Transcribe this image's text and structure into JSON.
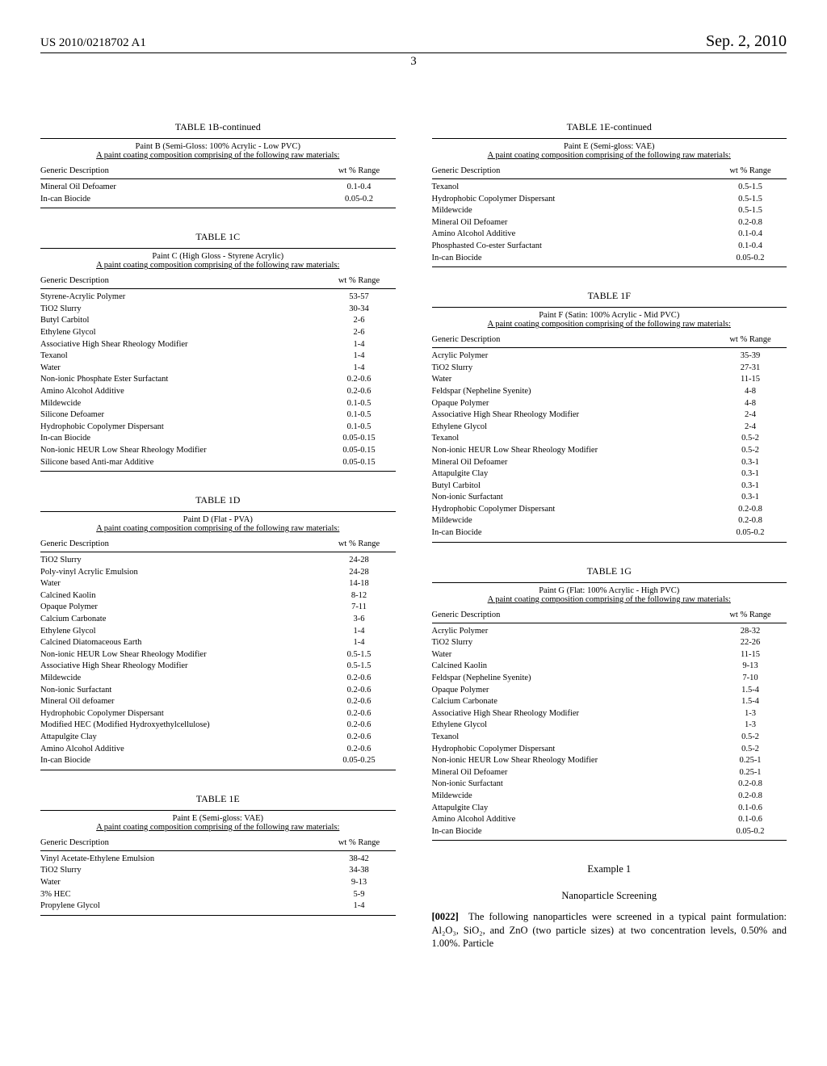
{
  "header": {
    "doc_id": "US 2010/0218702 A1",
    "pub_date": "Sep. 2, 2010",
    "page_num": "3"
  },
  "tables": {
    "t1b": {
      "title": "TABLE 1B-continued",
      "subtitle1": "Paint B (Semi-Gloss: 100% Acrylic - Low PVC)",
      "subtitle2": "A paint coating composition comprising of the following raw materials:",
      "col1": "Generic Description",
      "col2": "wt % Range",
      "rows": [
        [
          "Mineral Oil Defoamer",
          "0.1-0.4"
        ],
        [
          "In-can Biocide",
          "0.05-0.2"
        ]
      ]
    },
    "t1c": {
      "title": "TABLE 1C",
      "subtitle1": "Paint C (High Gloss - Styrene Acrylic)",
      "subtitle2": "A paint coating composition comprising of the following raw materials:",
      "col1": "Generic Description",
      "col2": "wt % Range",
      "rows": [
        [
          "Styrene-Acrylic Polymer",
          "53-57"
        ],
        [
          "TiO2 Slurry",
          "30-34"
        ],
        [
          "Butyl Carbitol",
          "2-6"
        ],
        [
          "Ethylene Glycol",
          "2-6"
        ],
        [
          "Associative High Shear Rheology Modifier",
          "1-4"
        ],
        [
          "Texanol",
          "1-4"
        ],
        [
          "Water",
          "1-4"
        ],
        [
          "Non-ionic Phosphate Ester Surfactant",
          "0.2-0.6"
        ],
        [
          "Amino Alcohol Additive",
          "0.2-0.6"
        ],
        [
          "Mildewcide",
          "0.1-0.5"
        ],
        [
          "Silicone Defoamer",
          "0.1-0.5"
        ],
        [
          "Hydrophobic Copolymer Dispersant",
          "0.1-0.5"
        ],
        [
          "In-can Biocide",
          "0.05-0.15"
        ],
        [
          "Non-ionic HEUR Low Shear Rheology Modifier",
          "0.05-0.15"
        ],
        [
          "Silicone based Anti-mar Additive",
          "0.05-0.15"
        ]
      ]
    },
    "t1d": {
      "title": "TABLE 1D",
      "subtitle1": "Paint D (Flat - PVA)",
      "subtitle2": "A paint coating composition comprising of the following raw materials:",
      "col1": "Generic Description",
      "col2": "wt % Range",
      "rows": [
        [
          "TiO2 Slurry",
          "24-28"
        ],
        [
          "Poly-vinyl Acrylic Emulsion",
          "24-28"
        ],
        [
          "Water",
          "14-18"
        ],
        [
          "Calcined Kaolin",
          "8-12"
        ],
        [
          "Opaque Polymer",
          "7-11"
        ],
        [
          "Calcium Carbonate",
          "3-6"
        ],
        [
          "Ethylene Glycol",
          "1-4"
        ],
        [
          "Calcined Diatomaceous Earth",
          "1-4"
        ],
        [
          "Non-ionic HEUR Low Shear Rheology Modifier",
          "0.5-1.5"
        ],
        [
          "Associative High Shear Rheology Modifier",
          "0.5-1.5"
        ],
        [
          "Mildewcide",
          "0.2-0.6"
        ],
        [
          "Non-ionic Surfactant",
          "0.2-0.6"
        ],
        [
          "Mineral Oil defoamer",
          "0.2-0.6"
        ],
        [
          "Hydrophobic Copolymer Dispersant",
          "0.2-0.6"
        ],
        [
          "Modified HEC (Modified Hydroxyethylcellulose)",
          "0.2-0.6"
        ],
        [
          "Attapulgite Clay",
          "0.2-0.6"
        ],
        [
          "Amino Alcohol Additive",
          "0.2-0.6"
        ],
        [
          "In-can Biocide",
          "0.05-0.25"
        ]
      ]
    },
    "t1e_part1": {
      "title": "TABLE 1E",
      "subtitle1": "Paint E (Semi-gloss: VAE)",
      "subtitle2": "A paint coating composition comprising of the following raw materials:",
      "col1": "Generic Description",
      "col2": "wt % Range",
      "rows": [
        [
          "Vinyl Acetate-Ethylene Emulsion",
          "38-42"
        ],
        [
          "TiO2 Slurry",
          "34-38"
        ],
        [
          "Water",
          "9-13"
        ],
        [
          "3% HEC",
          "5-9"
        ],
        [
          "Propylene Glycol",
          "1-4"
        ]
      ]
    },
    "t1e_part2": {
      "title": "TABLE 1E-continued",
      "subtitle1": "Paint E (Semi-gloss: VAE)",
      "subtitle2": "A paint coating composition comprising of the following raw materials:",
      "col1": "Generic Description",
      "col2": "wt % Range",
      "rows": [
        [
          "Texanol",
          "0.5-1.5"
        ],
        [
          "Hydrophobic Copolymer Dispersant",
          "0.5-1.5"
        ],
        [
          "Mildewcide",
          "0.5-1.5"
        ],
        [
          "Mineral Oil Defoamer",
          "0.2-0.8"
        ],
        [
          "Amino Alcohol Additive",
          "0.1-0.4"
        ],
        [
          "Phosphasted Co-ester Surfactant",
          "0.1-0.4"
        ],
        [
          "In-can Biocide",
          "0.05-0.2"
        ]
      ]
    },
    "t1f": {
      "title": "TABLE 1F",
      "subtitle1": "Paint F (Satin: 100% Acrylic - Mid PVC)",
      "subtitle2": "A paint coating composition comprising of the following raw materials:",
      "col1": "Generic Description",
      "col2": "wt % Range",
      "rows": [
        [
          "Acrylic Polymer",
          "35-39"
        ],
        [
          "TiO2 Slurry",
          "27-31"
        ],
        [
          "Water",
          "11-15"
        ],
        [
          "Feldspar (Nepheline Syenite)",
          "4-8"
        ],
        [
          "Opaque Polymer",
          "4-8"
        ],
        [
          "Associative High Shear Rheology Modifier",
          "2-4"
        ],
        [
          "Ethylene Glycol",
          "2-4"
        ],
        [
          "Texanol",
          "0.5-2"
        ],
        [
          "Non-ionic HEUR Low Shear Rheology Modifier",
          "0.5-2"
        ],
        [
          "Mineral Oil Defoamer",
          "0.3-1"
        ],
        [
          "Attapulgite Clay",
          "0.3-1"
        ],
        [
          "Butyl Carbitol",
          "0.3-1"
        ],
        [
          "Non-ionic Surfactant",
          "0.3-1"
        ],
        [
          "Hydrophobic Copolymer Dispersant",
          "0.2-0.8"
        ],
        [
          "Mildewcide",
          "0.2-0.8"
        ],
        [
          "In-can Biocide",
          "0.05-0.2"
        ]
      ]
    },
    "t1g": {
      "title": "TABLE 1G",
      "subtitle1": "Paint G (Flat: 100% Acrylic - High PVC)",
      "subtitle2": "A paint coating composition comprising of the following raw materials:",
      "col1": "Generic Description",
      "col2": "wt % Range",
      "rows": [
        [
          "Acrylic Polymer",
          "28-32"
        ],
        [
          "TiO2 Slurry",
          "22-26"
        ],
        [
          "Water",
          "11-15"
        ],
        [
          "Calcined Kaolin",
          "9-13"
        ],
        [
          "Feldspar (Nepheline Syenite)",
          "7-10"
        ],
        [
          "Opaque Polymer",
          "1.5-4"
        ],
        [
          "Calcium Carbonate",
          "1.5-4"
        ],
        [
          "Associative High Shear Rheology Modifier",
          "1-3"
        ],
        [
          "Ethylene Glycol",
          "1-3"
        ],
        [
          "Texanol",
          "0.5-2"
        ],
        [
          "Hydrophobic Copolymer Dispersant",
          "0.5-2"
        ],
        [
          "Non-ionic HEUR Low Shear Rheology Modifier",
          "0.25-1"
        ],
        [
          "Mineral Oil Defoamer",
          "0.25-1"
        ],
        [
          "Non-ionic Surfactant",
          "0.2-0.8"
        ],
        [
          "Mildewcide",
          "0.2-0.8"
        ],
        [
          "Attapulgite Clay",
          "0.1-0.6"
        ],
        [
          "Amino Alcohol Additive",
          "0.1-0.6"
        ],
        [
          "In-can Biocide",
          "0.05-0.2"
        ]
      ]
    }
  },
  "example": {
    "heading1": "Example 1",
    "heading2": "Nanoparticle Screening",
    "para_num": "[0022]",
    "text": "The following nanoparticles were screened in a typical paint formulation: Al₂O₃, SiO₂, and ZnO (two particle sizes) at two concentration levels, 0.50% and 1.00%. Particle"
  }
}
